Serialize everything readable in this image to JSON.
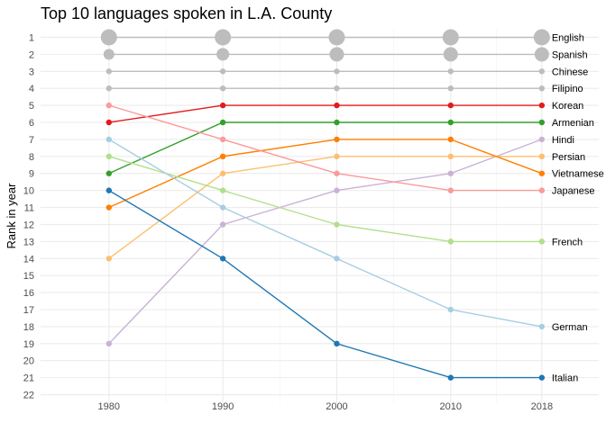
{
  "chart_data": {
    "type": "line",
    "title": "Top 10 languages spoken in L.A. County",
    "xlabel": "",
    "ylabel": "Rank in year",
    "x": [
      1980,
      1990,
      2000,
      2010,
      2018
    ],
    "xlim": [
      1974,
      2023
    ],
    "ylim": [
      22.5,
      0.5
    ],
    "y_reversed": true,
    "y_ticks": [
      1,
      2,
      3,
      4,
      5,
      6,
      7,
      8,
      9,
      10,
      11,
      12,
      13,
      14,
      15,
      16,
      17,
      18,
      19,
      20,
      21,
      22
    ],
    "grid": true,
    "legend": "none",
    "series": [
      {
        "name": "English",
        "values": [
          1,
          1,
          1,
          1,
          1
        ],
        "color": "#bdbdbd",
        "size": [
          9,
          9,
          9,
          9,
          9
        ]
      },
      {
        "name": "Spanish",
        "values": [
          2,
          2,
          2,
          2,
          2
        ],
        "color": "#bdbdbd",
        "size": [
          6,
          7,
          8,
          8,
          8
        ]
      },
      {
        "name": "Chinese",
        "values": [
          3,
          3,
          3,
          3,
          3
        ],
        "color": "#bdbdbd",
        "size": [
          3.2,
          3.2,
          3.2,
          3.2,
          3.2
        ]
      },
      {
        "name": "Filipino",
        "values": [
          4,
          4,
          4,
          4,
          4
        ],
        "color": "#bdbdbd",
        "size": [
          3.2,
          3.2,
          3.2,
          3.2,
          3.2
        ]
      },
      {
        "name": "Korean",
        "values": [
          6,
          5,
          5,
          5,
          5
        ],
        "color": "#e31a1c",
        "size": [
          3.2,
          3.2,
          3.2,
          3.2,
          3.2
        ]
      },
      {
        "name": "Armenian",
        "values": [
          9,
          6,
          6,
          6,
          6
        ],
        "color": "#33a02c",
        "size": [
          3.2,
          3.2,
          3.2,
          3.2,
          3.2
        ]
      },
      {
        "name": "Hindi",
        "values": [
          19,
          12,
          10,
          9,
          7
        ],
        "color": "#cab2d6",
        "size": [
          3.2,
          3.2,
          3.2,
          3.2,
          3.2
        ]
      },
      {
        "name": "Persian",
        "values": [
          14,
          9,
          8,
          8,
          8
        ],
        "color": "#fdbf6f",
        "size": [
          3.2,
          3.2,
          3.2,
          3.2,
          3.2
        ]
      },
      {
        "name": "Vietnamese",
        "values": [
          11,
          8,
          7,
          7,
          9
        ],
        "color": "#ff7f00",
        "size": [
          3.2,
          3.2,
          3.2,
          3.2,
          3.2
        ]
      },
      {
        "name": "Japanese",
        "values": [
          5,
          7,
          9,
          10,
          10
        ],
        "color": "#fb9a99",
        "size": [
          3.2,
          3.2,
          3.2,
          3.2,
          3.2
        ]
      },
      {
        "name": "French",
        "values": [
          8,
          10,
          12,
          13,
          13
        ],
        "color": "#b2df8a",
        "size": [
          3.2,
          3.2,
          3.2,
          3.2,
          3.2
        ]
      },
      {
        "name": "German",
        "values": [
          7,
          11,
          14,
          17,
          18
        ],
        "color": "#a6cee3",
        "size": [
          3.2,
          3.2,
          3.2,
          3.2,
          3.2
        ]
      },
      {
        "name": "Italian",
        "values": [
          10,
          14,
          19,
          21,
          21
        ],
        "color": "#1f78b4",
        "size": [
          3.2,
          3.2,
          3.2,
          3.2,
          3.2
        ]
      }
    ]
  }
}
